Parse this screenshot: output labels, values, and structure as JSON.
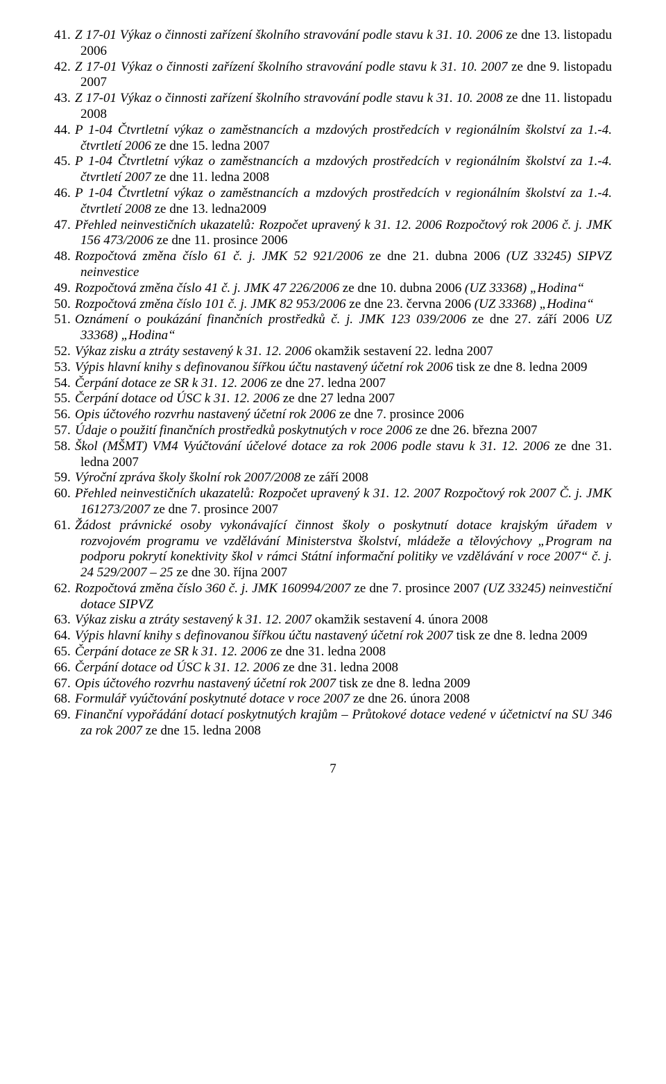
{
  "page_number": "7",
  "items": [
    {
      "n": "41.",
      "segments": [
        {
          "t": "Z 17-01 Výkaz o činnosti zařízení školního stravování podle stavu k 31. 10. 2006",
          "i": true
        },
        {
          "t": " ze dne 13. listopadu 2006",
          "i": false
        }
      ]
    },
    {
      "n": "42.",
      "segments": [
        {
          "t": "Z 17-01 Výkaz o činnosti zařízení školního stravování podle stavu k 31. 10. 2007",
          "i": true
        },
        {
          "t": " ze dne 9. listopadu 2007",
          "i": false
        }
      ]
    },
    {
      "n": "43.",
      "segments": [
        {
          "t": "Z 17-01 Výkaz o činnosti zařízení školního stravování podle stavu k 31. 10. 2008",
          "i": true
        },
        {
          "t": " ze dne 11. listopadu 2008",
          "i": false
        }
      ]
    },
    {
      "n": "44.",
      "segments": [
        {
          "t": "P 1-04 Čtvrtletní výkaz o zaměstnancích a mzdových prostředcích v regionálním školství za 1.-4. čtvrtletí 2006",
          "i": true
        },
        {
          "t": " ze dne 15. ledna 2007",
          "i": false
        }
      ]
    },
    {
      "n": "45.",
      "segments": [
        {
          "t": "P 1-04 Čtvrtletní výkaz o zaměstnancích a mzdových prostředcích v regionálním školství za 1.-4. čtvrtletí 2007",
          "i": true
        },
        {
          "t": " ze dne 11. ledna 2008",
          "i": false
        }
      ]
    },
    {
      "n": "46.",
      "segments": [
        {
          "t": "P 1-04 Čtvrtletní výkaz o zaměstnancích a mzdových prostředcích v regionálním školství za 1.-4. čtvrtletí 2008",
          "i": true
        },
        {
          "t": " ze dne 13. ledna2009",
          "i": false
        }
      ]
    },
    {
      "n": "47.",
      "segments": [
        {
          "t": "Přehled neinvestičních ukazatelů: Rozpočet upravený k 31. 12. 2006 Rozpočtový rok 2006 č. j. JMK 156 473/2006",
          "i": true
        },
        {
          "t": " ze dne 11. prosince 2006",
          "i": false
        }
      ]
    },
    {
      "n": "48.",
      "segments": [
        {
          "t": "Rozpočtová změna číslo 61 č. j. JMK 52 921/2006",
          "i": true
        },
        {
          "t": " ze dne 21. dubna 2006 ",
          "i": false
        },
        {
          "t": "(UZ 33245) SIPVZ neinvestice",
          "i": true
        }
      ]
    },
    {
      "n": "49.",
      "segments": [
        {
          "t": "Rozpočtová změna číslo 41 č. j. JMK 47 226/2006",
          "i": true
        },
        {
          "t": " ze dne 10. dubna 2006 ",
          "i": false
        },
        {
          "t": "(UZ 33368) „Hodina“",
          "i": true
        }
      ]
    },
    {
      "n": "50.",
      "segments": [
        {
          "t": "Rozpočtová změna číslo 101 č. j. JMK 82 953/2006",
          "i": true
        },
        {
          "t": " ze dne 23. června 2006 ",
          "i": false
        },
        {
          "t": "(UZ 33368) „Hodina“",
          "i": true
        }
      ]
    },
    {
      "n": "51.",
      "segments": [
        {
          "t": "Oznámení o poukázání finančních prostředků č. j. JMK 123 039/2006",
          "i": true
        },
        {
          "t": " ze dne 27. září 2006 ",
          "i": false
        },
        {
          "t": "UZ 33368) „Hodina“",
          "i": true
        }
      ]
    },
    {
      "n": "52.",
      "segments": [
        {
          "t": "Výkaz zisku a ztráty sestavený k 31. 12. 2006",
          "i": true
        },
        {
          "t": " okamžik sestavení 22. ledna 2007",
          "i": false
        }
      ]
    },
    {
      "n": "53.",
      "segments": [
        {
          "t": "Výpis hlavní knihy s definovanou šířkou účtu nastavený účetní rok 2006",
          "i": true
        },
        {
          "t": " tisk ze dne 8. ledna 2009",
          "i": false
        }
      ]
    },
    {
      "n": "54.",
      "segments": [
        {
          "t": "Čerpání dotace ze SR k 31. 12. 2006",
          "i": true
        },
        {
          "t": " ze dne 27. ledna 2007",
          "i": false
        }
      ]
    },
    {
      "n": "55.",
      "segments": [
        {
          "t": "Čerpání dotace od ÚSC k 31. 12. 2006",
          "i": true
        },
        {
          "t": " ze dne 27 ledna 2007",
          "i": false
        }
      ]
    },
    {
      "n": "56.",
      "segments": [
        {
          "t": "Opis účtového rozvrhu nastavený účetní rok 2006",
          "i": true
        },
        {
          "t": " ze dne 7. prosince 2006",
          "i": false
        }
      ]
    },
    {
      "n": "57.",
      "segments": [
        {
          "t": "Údaje o použití finančních prostředků poskytnutých v roce 2006",
          "i": true
        },
        {
          "t": " ze dne 26. března 2007",
          "i": false
        }
      ]
    },
    {
      "n": "58.",
      "segments": [
        {
          "t": "Škol (MŠMT) VM4 Vyúčtování účelové dotace za rok 2006 podle stavu k 31. 12. 2006",
          "i": true
        },
        {
          "t": " ze dne 31. ledna 2007",
          "i": false
        }
      ]
    },
    {
      "n": "59.",
      "segments": [
        {
          "t": "Výroční zpráva školy školní rok 2007/2008",
          "i": true
        },
        {
          "t": " ze září 2008",
          "i": false
        }
      ]
    },
    {
      "n": "60.",
      "segments": [
        {
          "t": "Přehled neinvestičních ukazatelů: Rozpočet upravený k 31. 12. 2007 Rozpočtový rok 2007 Č. j. JMK 161273/2007",
          "i": true
        },
        {
          "t": " ze dne 7. prosince 2007",
          "i": false
        }
      ]
    },
    {
      "n": "61.",
      "segments": [
        {
          "t": "Žádost právnické osoby vykonávající činnost školy o poskytnutí dotace krajským úřadem v rozvojovém programu ve vzdělávání Ministerstva školství, mládeže a tělovýchovy „Program na podporu pokrytí konektivity škol v rámci Státní informační politiky ve vzdělávání v roce 2007“ č. j. 24 529/2007 – 25",
          "i": true
        },
        {
          "t": " ze dne 30. října 2007",
          "i": false
        }
      ]
    },
    {
      "n": "62.",
      "segments": [
        {
          "t": "Rozpočtová změna číslo 360 č. j. JMK 160994/2007",
          "i": true
        },
        {
          "t": " ze dne 7. prosince 2007 ",
          "i": false
        },
        {
          "t": "(UZ 33245) neinvestiční dotace SIPVZ",
          "i": true
        }
      ]
    },
    {
      "n": "63.",
      "segments": [
        {
          "t": "Výkaz zisku a ztráty sestavený k 31. 12. 2007",
          "i": true
        },
        {
          "t": " okamžik sestavení 4. února 2008",
          "i": false
        }
      ]
    },
    {
      "n": "64.",
      "segments": [
        {
          "t": "Výpis hlavní knihy s definovanou šířkou účtu nastavený účetní rok 2007",
          "i": true
        },
        {
          "t": " tisk ze dne 8. ledna 2009",
          "i": false
        }
      ]
    },
    {
      "n": "65.",
      "segments": [
        {
          "t": "Čerpání dotace ze SR k 31. 12. 2006",
          "i": true
        },
        {
          "t": " ze dne 31. ledna 2008",
          "i": false
        }
      ]
    },
    {
      "n": "66.",
      "segments": [
        {
          "t": "Čerpání dotace od ÚSC k 31. 12. 2006",
          "i": true
        },
        {
          "t": " ze dne 31. ledna 2008",
          "i": false
        }
      ]
    },
    {
      "n": "67.",
      "segments": [
        {
          "t": "Opis účtového rozvrhu nastavený účetní rok 2007",
          "i": true
        },
        {
          "t": " tisk ze dne 8. ledna 2009",
          "i": false
        }
      ]
    },
    {
      "n": "68.",
      "segments": [
        {
          "t": "Formulář vyúčtování poskytnuté dotace v roce 2007",
          "i": true
        },
        {
          "t": " ze dne 26. února 2008",
          "i": false
        }
      ]
    },
    {
      "n": "69.",
      "segments": [
        {
          "t": "Finanční vypořádání dotací poskytnutých krajům – Průtokové dotace vedené v účetnictví na SU 346 za rok 2007",
          "i": true
        },
        {
          "t": " ze dne 15. ledna 2008",
          "i": false
        }
      ]
    }
  ]
}
